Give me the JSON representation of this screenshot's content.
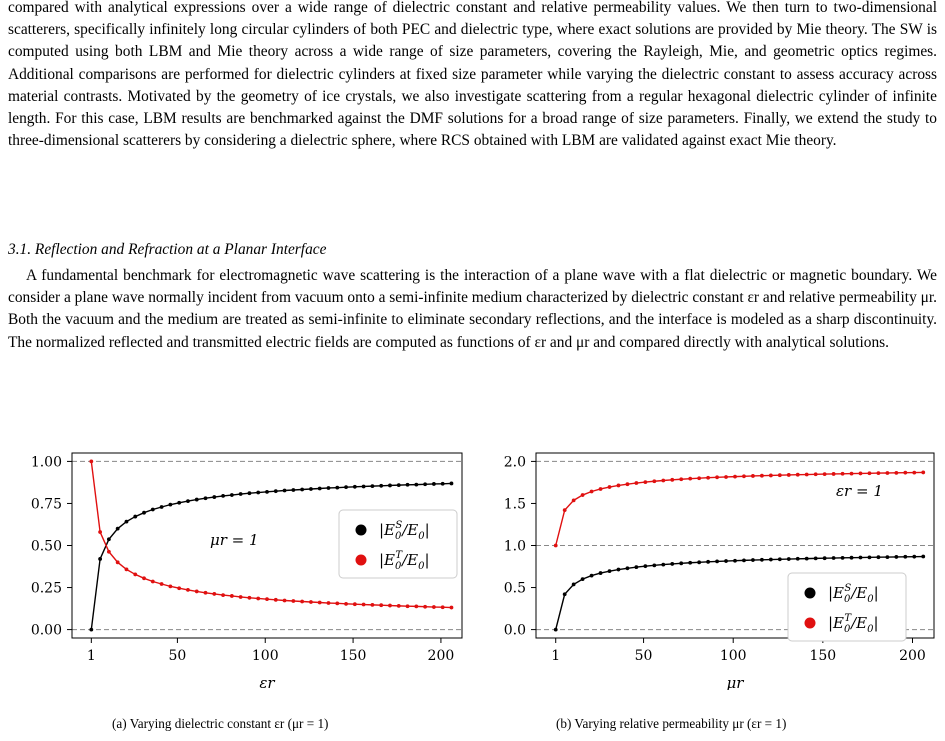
{
  "text": {
    "paragraph1": "compared with analytical expressions over a wide range of dielectric constant and relative permeability values. We then turn to two-dimensional scatterers, specifically infinitely long circular cylinders of both PEC and dielectric type, where exact solutions are provided by Mie theory. The SW is computed using both LBM and Mie theory across a wide range of size parameters, covering the Rayleigh, Mie, and geometric optics regimes. Additional comparisons are performed for dielectric cylinders at fixed size parameter while varying the dielectric constant to assess accuracy across material contrasts. Motivated by the geometry of ice crystals, we also investigate scattering from a regular hexagonal dielectric cylinder of infinite length. For this case, LBM results are benchmarked against the DMF solutions for a broad range of size parameters. Finally, we extend the study to three-dimensional scatterers by considering a dielectric sphere, where RCS obtained with LBM are validated against exact Mie theory.",
    "section_heading": "3.1. Reflection and Refraction at a Planar Interface",
    "paragraph2": "A fundamental benchmark for electromagnetic wave scattering is the interaction of a plane wave with a flat dielectric or magnetic boundary. We consider a plane wave normally incident from vacuum onto a semi-infinite medium characterized by dielectric constant εr and relative permeability μr. Both the vacuum and the medium are treated as semi-infinite to eliminate secondary reflections, and the interface is modeled as a sharp discontinuity. The normalized reflected and transmitted electric fields are computed as functions of εr and μr and compared directly with analytical solutions.",
    "caption_a": "(a) Varying dielectric constant εr (μr = 1)",
    "caption_b": "(b) Varying relative permeability μr (εr = 1)"
  },
  "chart_data": [
    {
      "type": "line",
      "xlabel": "εr",
      "ylabel": "",
      "annotation": "μr = 1",
      "xlim": [
        -10,
        212
      ],
      "ylim": [
        -0.05,
        1.05
      ],
      "xticks": [
        1,
        50,
        100,
        150,
        200
      ],
      "yticks": [
        "0.00",
        "0.25",
        "0.50",
        "0.75",
        "1.00"
      ],
      "reference_lines": [
        0,
        1
      ],
      "legend_position": "center-right",
      "series": [
        {
          "name": "|E0S/E0|",
          "color": "#000000",
          "x": [
            1,
            6,
            11,
            16,
            21,
            26,
            31,
            36,
            41,
            46,
            51,
            56,
            61,
            66,
            71,
            76,
            81,
            86,
            91,
            96,
            101,
            106,
            111,
            116,
            121,
            126,
            131,
            136,
            141,
            146,
            151,
            156,
            161,
            166,
            171,
            176,
            181,
            186,
            191,
            196,
            201,
            206
          ],
          "y": [
            0.0,
            0.42,
            0.537,
            0.6,
            0.642,
            0.672,
            0.695,
            0.714,
            0.729,
            0.743,
            0.754,
            0.764,
            0.773,
            0.781,
            0.788,
            0.795,
            0.8,
            0.806,
            0.811,
            0.815,
            0.819,
            0.823,
            0.827,
            0.83,
            0.833,
            0.836,
            0.839,
            0.842,
            0.844,
            0.847,
            0.849,
            0.851,
            0.853,
            0.855,
            0.857,
            0.859,
            0.861,
            0.862,
            0.864,
            0.866,
            0.867,
            0.869
          ]
        },
        {
          "name": "|E0T/E0|",
          "color": "#e01010",
          "x": [
            1,
            6,
            11,
            16,
            21,
            26,
            31,
            36,
            41,
            46,
            51,
            56,
            61,
            66,
            71,
            76,
            81,
            86,
            91,
            96,
            101,
            106,
            111,
            116,
            121,
            126,
            131,
            136,
            141,
            146,
            151,
            156,
            161,
            166,
            171,
            176,
            181,
            186,
            191,
            196,
            201,
            206
          ],
          "y": [
            1.0,
            0.58,
            0.463,
            0.4,
            0.358,
            0.328,
            0.305,
            0.286,
            0.271,
            0.257,
            0.246,
            0.236,
            0.227,
            0.219,
            0.212,
            0.205,
            0.2,
            0.194,
            0.189,
            0.185,
            0.181,
            0.177,
            0.173,
            0.17,
            0.167,
            0.164,
            0.161,
            0.158,
            0.156,
            0.153,
            0.151,
            0.149,
            0.147,
            0.145,
            0.143,
            0.141,
            0.139,
            0.138,
            0.136,
            0.134,
            0.133,
            0.131
          ]
        }
      ]
    },
    {
      "type": "line",
      "xlabel": "μr",
      "ylabel": "",
      "annotation": "εr = 1",
      "xlim": [
        -10,
        212
      ],
      "ylim": [
        -0.1,
        2.1
      ],
      "xticks": [
        1,
        50,
        100,
        150,
        200
      ],
      "yticks": [
        "0.0",
        "0.5",
        "1.0",
        "1.5",
        "2.0"
      ],
      "reference_lines": [
        0,
        1,
        2
      ],
      "legend_position": "lower-right",
      "series": [
        {
          "name": "|E0S/E0|",
          "color": "#000000",
          "x": [
            1,
            6,
            11,
            16,
            21,
            26,
            31,
            36,
            41,
            46,
            51,
            56,
            61,
            66,
            71,
            76,
            81,
            86,
            91,
            96,
            101,
            106,
            111,
            116,
            121,
            126,
            131,
            136,
            141,
            146,
            151,
            156,
            161,
            166,
            171,
            176,
            181,
            186,
            191,
            196,
            201,
            206
          ],
          "y": [
            0.0,
            0.42,
            0.537,
            0.6,
            0.642,
            0.672,
            0.695,
            0.714,
            0.729,
            0.743,
            0.754,
            0.764,
            0.773,
            0.781,
            0.788,
            0.795,
            0.8,
            0.806,
            0.811,
            0.815,
            0.819,
            0.823,
            0.827,
            0.83,
            0.833,
            0.836,
            0.839,
            0.842,
            0.844,
            0.847,
            0.849,
            0.851,
            0.853,
            0.855,
            0.857,
            0.859,
            0.861,
            0.862,
            0.864,
            0.866,
            0.867,
            0.869
          ]
        },
        {
          "name": "|E0T/E0|",
          "color": "#e01010",
          "x": [
            1,
            6,
            11,
            16,
            21,
            26,
            31,
            36,
            41,
            46,
            51,
            56,
            61,
            66,
            71,
            76,
            81,
            86,
            91,
            96,
            101,
            106,
            111,
            116,
            121,
            126,
            131,
            136,
            141,
            146,
            151,
            156,
            161,
            166,
            171,
            176,
            181,
            186,
            191,
            196,
            201,
            206
          ],
          "y": [
            1.0,
            1.42,
            1.537,
            1.6,
            1.642,
            1.672,
            1.695,
            1.714,
            1.729,
            1.743,
            1.754,
            1.764,
            1.773,
            1.781,
            1.788,
            1.795,
            1.8,
            1.806,
            1.811,
            1.815,
            1.819,
            1.823,
            1.827,
            1.83,
            1.833,
            1.836,
            1.839,
            1.842,
            1.844,
            1.847,
            1.849,
            1.851,
            1.853,
            1.855,
            1.857,
            1.859,
            1.861,
            1.862,
            1.864,
            1.866,
            1.867,
            1.869
          ]
        }
      ]
    }
  ]
}
